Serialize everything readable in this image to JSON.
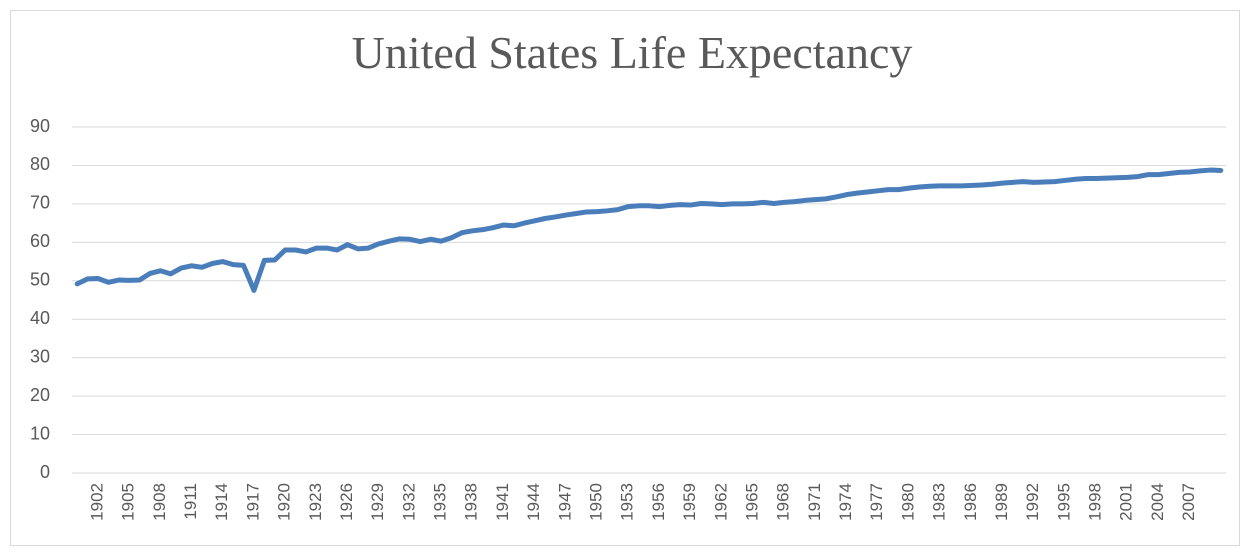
{
  "chart_data": {
    "type": "line",
    "title": "United States Life Expectancy",
    "categories": [
      null,
      null,
      "1902",
      null,
      null,
      "1905",
      null,
      null,
      "1908",
      null,
      null,
      "1911",
      null,
      null,
      "1914",
      null,
      null,
      "1917",
      null,
      null,
      "1920",
      null,
      null,
      "1923",
      null,
      null,
      "1926",
      null,
      null,
      "1929",
      null,
      null,
      "1932",
      null,
      null,
      "1935",
      null,
      null,
      "1938",
      null,
      null,
      "1941",
      null,
      null,
      "1944",
      null,
      null,
      "1947",
      null,
      null,
      "1950",
      null,
      null,
      "1953",
      null,
      null,
      "1956",
      null,
      null,
      "1959",
      null,
      null,
      "1962",
      null,
      null,
      "1965",
      null,
      null,
      "1968",
      null,
      null,
      "1971",
      null,
      null,
      "1974",
      null,
      null,
      "1977",
      null,
      null,
      "1980",
      null,
      null,
      "1983",
      null,
      null,
      "1986",
      null,
      null,
      "1989",
      null,
      null,
      "1992",
      null,
      null,
      "1995",
      null,
      null,
      "1998",
      null,
      null,
      "2001",
      null,
      null,
      "2004",
      null,
      null,
      "2007",
      null,
      null,
      null
    ],
    "values": [
      49.2,
      50.5,
      50.6,
      49.6,
      50.2,
      50.1,
      50.2,
      51.9,
      52.6,
      51.8,
      53.3,
      53.9,
      53.5,
      54.5,
      55.0,
      54.2,
      54.0,
      47.5,
      55.3,
      55.4,
      58.0,
      58.0,
      57.5,
      58.5,
      58.5,
      58.0,
      59.4,
      58.3,
      58.5,
      59.6,
      60.3,
      60.9,
      60.8,
      60.2,
      60.8,
      60.3,
      61.2,
      62.5,
      63.0,
      63.3,
      63.8,
      64.5,
      64.3,
      65.0,
      65.6,
      66.2,
      66.6,
      67.1,
      67.5,
      67.9,
      68.0,
      68.2,
      68.5,
      69.3,
      69.5,
      69.5,
      69.3,
      69.6,
      69.8,
      69.7,
      70.1,
      70.0,
      69.8,
      70.0,
      70.0,
      70.1,
      70.4,
      70.1,
      70.4,
      70.6,
      70.9,
      71.1,
      71.3,
      71.8,
      72.4,
      72.8,
      73.1,
      73.4,
      73.7,
      73.7,
      74.1,
      74.4,
      74.6,
      74.7,
      74.7,
      74.7,
      74.8,
      74.9,
      75.1,
      75.4,
      75.6,
      75.8,
      75.6,
      75.7,
      75.8,
      76.1,
      76.4,
      76.6,
      76.6,
      76.7,
      76.8,
      76.9,
      77.1,
      77.6,
      77.6,
      77.9,
      78.2,
      78.3,
      78.6,
      78.8,
      78.7
    ],
    "color": "#4a7ebb",
    "ylim": [
      0,
      90
    ],
    "yticks": [
      0,
      10,
      20,
      30,
      40,
      50,
      60,
      70,
      80,
      90
    ],
    "grid": true
  }
}
